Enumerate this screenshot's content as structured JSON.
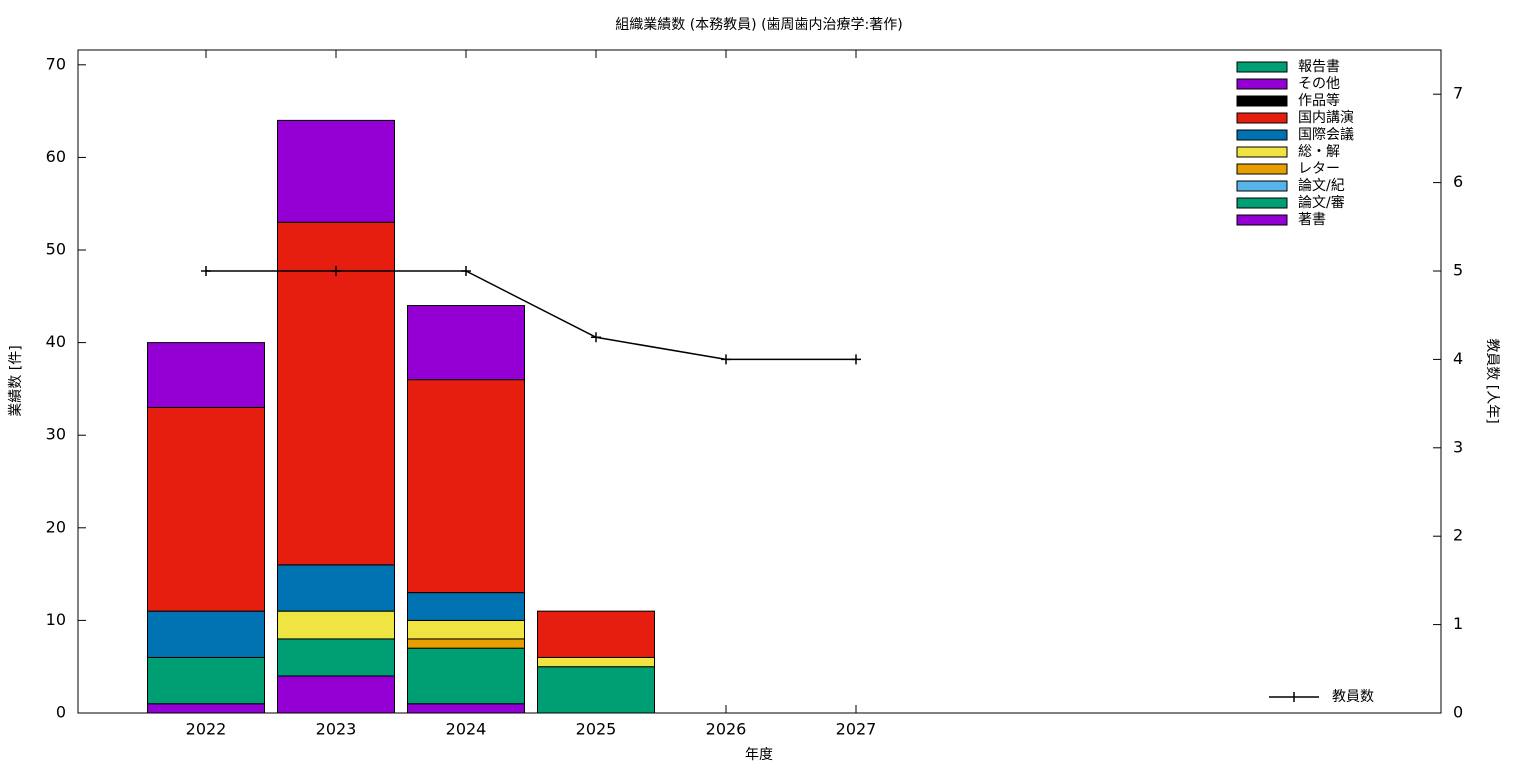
{
  "chart_data": {
    "type": "bar",
    "stacked": true,
    "title": "組織業績数 (本務教員) (歯周歯内治療学:著作)",
    "xlabel": "年度",
    "ylabel": "業績数 [件]",
    "y2label": "教員数 [人年]",
    "categories": [
      "2022",
      "2023",
      "2024",
      "2025",
      "2026",
      "2027"
    ],
    "series": [
      {
        "name": "著書",
        "color": "#9400d3",
        "values": [
          1,
          4,
          1,
          0,
          0,
          0
        ]
      },
      {
        "name": "論文/審",
        "color": "#009e73",
        "values": [
          5,
          4,
          6,
          5,
          0,
          0
        ]
      },
      {
        "name": "論文/紀",
        "color": "#56b4e9",
        "values": [
          0,
          0,
          0,
          0,
          0,
          0
        ]
      },
      {
        "name": "レター",
        "color": "#e69f00",
        "values": [
          0,
          0,
          1,
          0,
          0,
          0
        ]
      },
      {
        "name": "総・解",
        "color": "#f0e442",
        "values": [
          0,
          3,
          2,
          1,
          0,
          0
        ]
      },
      {
        "name": "国際会議",
        "color": "#0072b2",
        "values": [
          5,
          5,
          3,
          0,
          0,
          0
        ]
      },
      {
        "name": "国内講演",
        "color": "#e51e10",
        "values": [
          22,
          37,
          23,
          5,
          0,
          0
        ]
      },
      {
        "name": "作品等",
        "color": "#000000",
        "values": [
          0,
          0,
          0,
          0,
          0,
          0
        ]
      },
      {
        "name": "その他",
        "color": "#9400d3",
        "values": [
          7,
          11,
          8,
          0,
          0,
          0
        ]
      },
      {
        "name": "報告書",
        "color": "#009e73",
        "values": [
          0,
          0,
          0,
          0,
          0,
          0
        ]
      },
      {
        "name": "教員数",
        "type": "line",
        "axis": "y2",
        "color": "#000000",
        "values": [
          5,
          5,
          5,
          4.25,
          4,
          4
        ]
      }
    ],
    "ylim": [
      0,
      71.6
    ],
    "yticks": [
      0,
      10,
      20,
      30,
      40,
      50,
      60,
      70
    ],
    "y2lim": [
      0,
      7.5
    ],
    "y2ticks": [
      0,
      1,
      2,
      3,
      4,
      5,
      6,
      7
    ]
  }
}
